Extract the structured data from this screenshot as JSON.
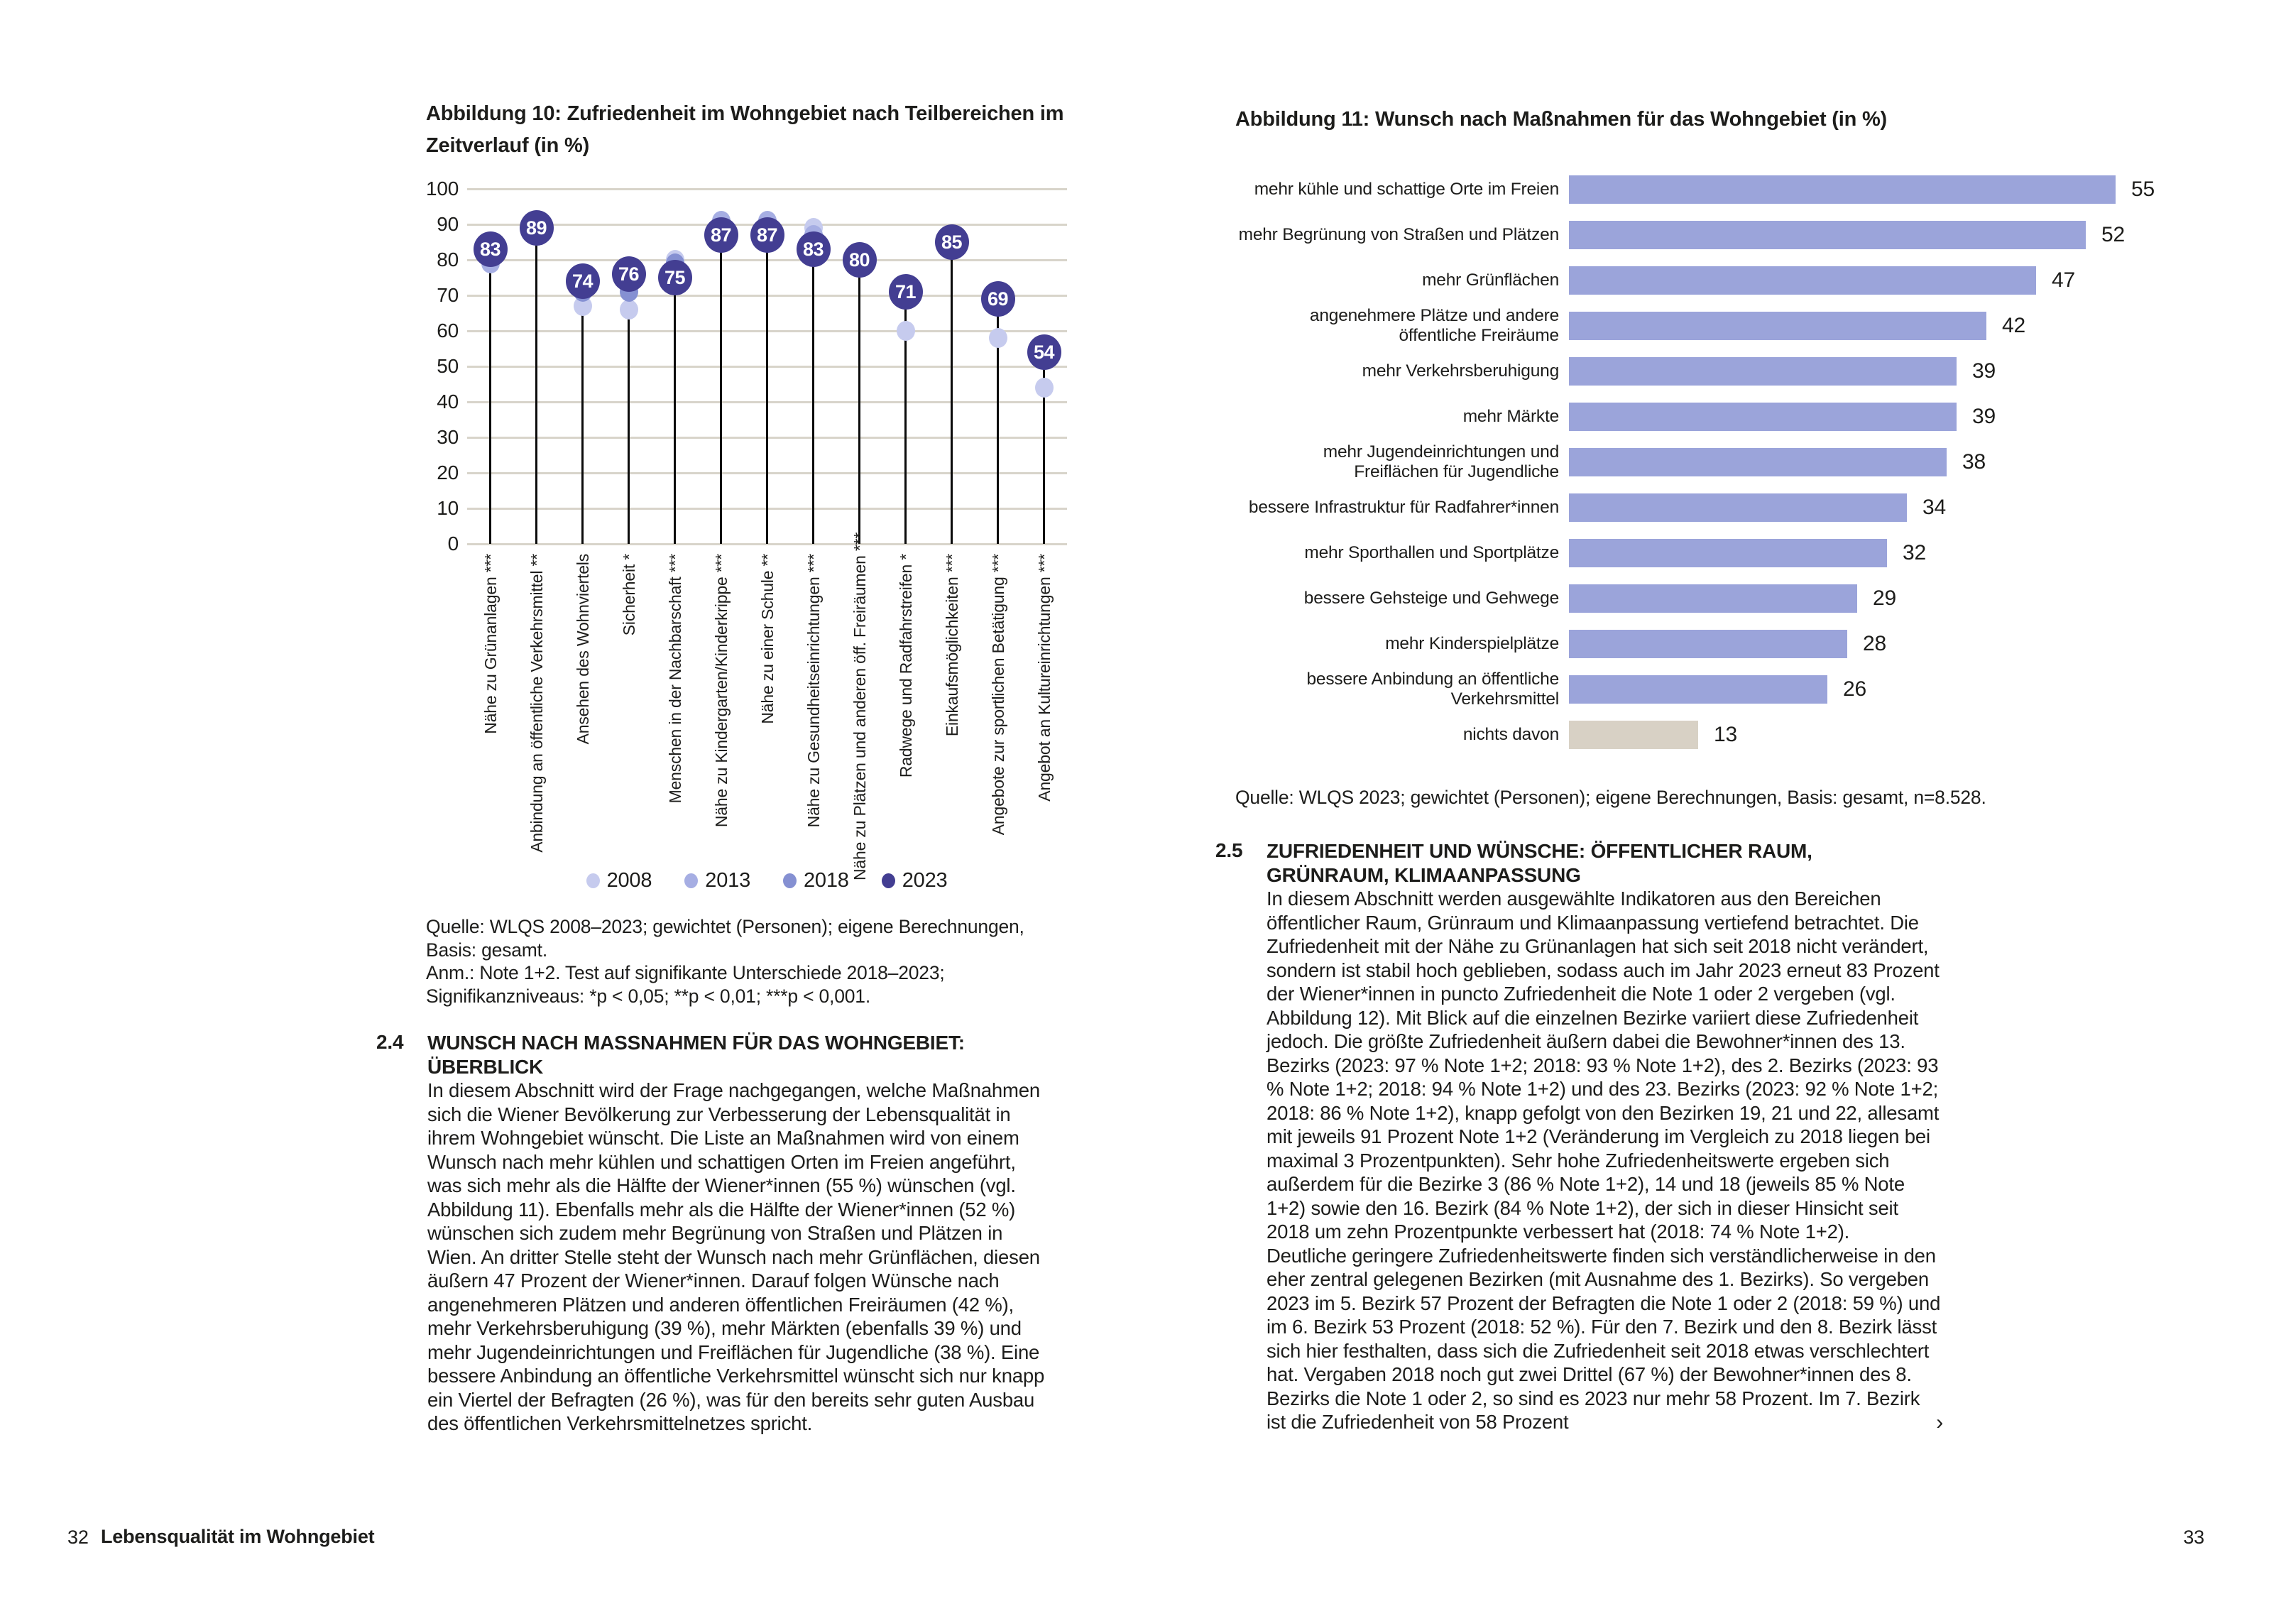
{
  "colors": {
    "accent_dark": "#433e92",
    "dot_2008": "#c6cbee",
    "dot_2013": "#a6aee3",
    "dot_2018": "#8590d2",
    "bar": "#9ba4da",
    "bar_muted": "#d8d1c5",
    "grid": "#d8d4ca",
    "text": "#1d1d1b"
  },
  "figure10": {
    "title_lines": [
      "Abbildung 10: Zufriedenheit im Wohngebiet nach Teilbereichen im",
      "Zeitverlauf (in %)"
    ],
    "source_line1": "Quelle: WLQS 2008–2023; gewichtet (Personen); eigene Berechnungen, Basis: gesamt.",
    "source_line2": "Anm.: Note 1+2. Test auf signifikante Unterschiede 2018–2023; Signifikanzniveaus: *p < 0,05; **p < 0,01; ***p < 0,001."
  },
  "figure11": {
    "title": "Abbildung 11: Wunsch nach Maßnahmen für das Wohngebiet (in %)",
    "source": "Quelle: WLQS 2023; gewichtet (Personen); eigene Berechnungen, Basis: gesamt, n=8.528."
  },
  "sections": {
    "s24": {
      "number": "2.4",
      "heading": "WUNSCH NACH MASSNAHMEN FÜR DAS WOHNGEBIET: ÜBERBLICK",
      "body": "In diesem Abschnitt wird der Frage nachgegangen, welche Maßnahmen sich die Wiener Bevölkerung zur Verbesserung der Lebensqualität in ihrem Wohngebiet wünscht. Die Liste an Maßnahmen wird von einem Wunsch nach mehr kühlen und schattigen Orten im Freien angeführt, was sich mehr als die Hälfte der Wiener*innen (55 %) wünschen (vgl. Abbildung 11). Ebenfalls mehr als die Hälfte der Wiener*innen (52 %) wünschen sich zudem mehr Begrünung von Straßen und Plätzen in Wien. An dritter Stelle steht der Wunsch nach mehr Grünflächen, diesen äußern 47 Prozent der Wiener*innen. Darauf folgen Wünsche nach angenehmeren Plätzen und anderen öffentlichen Freiräumen (42 %), mehr Verkehrsberuhigung (39 %), mehr Märkten (ebenfalls 39 %) und mehr Jugendeinrichtungen und Freiflächen für Jugendliche (38 %). Eine bessere Anbindung an öffentliche Verkehrsmittel wünscht sich nur knapp ein Viertel der Befragten (26 %), was für den bereits sehr guten Ausbau des öffentlichen Verkehrsmittelnetzes spricht."
    },
    "s25": {
      "number": "2.5",
      "heading_lines": [
        "ZUFRIEDENHEIT UND WÜNSCHE: ÖFFENTLICHER RAUM,",
        "GRÜNRAUM, KLIMAANPASSUNG"
      ],
      "body1": "In diesem Abschnitt werden ausgewählte Indikatoren aus den Bereichen öffentlicher Raum, Grünraum und Klimaanpassung vertiefend betrachtet. Die Zufriedenheit mit der Nähe zu Grünanlagen hat sich seit 2018 nicht verändert, sondern ist stabil hoch geblieben, sodass auch im Jahr 2023 erneut 83 Prozent der Wiener*innen in puncto Zufriedenheit die Note 1 oder 2 vergeben (vgl. Abbildung 12). Mit Blick auf die einzelnen Bezirke variiert diese Zufriedenheit jedoch. Die größte Zufriedenheit äußern dabei die Bewohner*innen des 13. Bezirks (2023: 97 % Note 1+2; 2018: 93 % Note 1+2), des 2. Bezirks (2023: 93 % Note 1+2; 2018: 94 % Note 1+2) und des 23. Bezirks (2023: 92 % Note 1+2; 2018: 86 % Note 1+2), knapp gefolgt von den Bezirken 19, 21 und 22, allesamt mit jeweils 91 Prozent Note 1+2 (Veränderung im Vergleich zu 2018 liegen bei maximal 3 Prozentpunkten). Sehr hohe Zufriedenheitswerte ergeben sich außerdem für die Bezirke 3 (86 % Note 1+2), 14 und 18 (jeweils 85 % Note 1+2) sowie den 16. Bezirk (84 % Note 1+2), der sich in dieser Hinsicht seit 2018 um zehn Prozentpunkte verbessert hat (2018: 74 % Note 1+2).",
      "body2": "Deutliche geringere Zufriedenheitswerte finden sich verständlicherweise in den eher zentral gelegenen Bezirken (mit Ausnahme des 1. Bezirks). So vergeben 2023 im 5. Bezirk 57 Prozent der Befragten die Note 1 oder 2 (2018: 59 %) und im 6. Bezirk 53 Prozent (2018: 52 %). Für den 7. Bezirk und den 8. Bezirk lässt sich hier festhalten, dass sich die Zufriedenheit seit 2018 etwas verschlechtert hat. Vergaben 2018 noch gut zwei Drittel (67 %) der Bewohner*innen des 8. Bezirks die Note 1 oder 2, so sind es 2023 nur mehr 58 Prozent. Im 7. Bezirk ist die Zufriedenheit von 58 Prozent",
      "continuation_mark": "›"
    }
  },
  "footer": {
    "left_page_number": "32",
    "left_title": "Lebensqualität im Wohngebiet",
    "right_page_number": "33"
  },
  "chart_data": [
    {
      "type": "scatter",
      "variant": "lollipop-dot-timeline",
      "title": "Abbildung 10: Zufriedenheit im Wohngebiet nach Teilbereichen im Zeitverlauf (in %)",
      "ylim": [
        0,
        100
      ],
      "yticks": [
        0,
        10,
        20,
        30,
        40,
        50,
        60,
        70,
        80,
        90,
        100
      ],
      "grid": true,
      "legend_position": "bottom",
      "legend": [
        {
          "year": "2008",
          "color": "#c6cbee"
        },
        {
          "year": "2013",
          "color": "#a6aee3"
        },
        {
          "year": "2018",
          "color": "#8590d2"
        },
        {
          "year": "2023",
          "color": "#433e92"
        }
      ],
      "categories": [
        {
          "label": "Nähe zu Grünanlagen ***",
          "points": [
            {
              "year": "2013",
              "value": 79
            },
            {
              "year": "2023",
              "value": 83
            }
          ]
        },
        {
          "label": "Anbindung an öffentliche Verkehrsmittel **",
          "points": [
            {
              "year": "2023",
              "value": 89
            }
          ]
        },
        {
          "label": "Ansehen des Wohnviertels",
          "points": [
            {
              "year": "2008",
              "value": 67
            },
            {
              "year": "2018",
              "value": 71
            },
            {
              "year": "2023",
              "value": 74
            }
          ]
        },
        {
          "label": "Sicherheit *",
          "points": [
            {
              "year": "2008",
              "value": 66
            },
            {
              "year": "2018",
              "value": 71
            },
            {
              "year": "2023",
              "value": 76
            }
          ]
        },
        {
          "label": "Menschen in der Nachbarschaft ***",
          "points": [
            {
              "year": "2008",
              "value": 80
            },
            {
              "year": "2018",
              "value": 79
            },
            {
              "year": "2023",
              "value": 75
            }
          ]
        },
        {
          "label": "Nähe zu Kindergarten/Kinderkrippe ***",
          "points": [
            {
              "year": "2013",
              "value": 91
            },
            {
              "year": "2023",
              "value": 87
            }
          ]
        },
        {
          "label": "Nähe zu einer Schule **",
          "points": [
            {
              "year": "2013",
              "value": 91
            },
            {
              "year": "2023",
              "value": 87
            }
          ]
        },
        {
          "label": "Nähe zu Gesundheitseinrichtungen ***",
          "points": [
            {
              "year": "2008",
              "value": 89
            },
            {
              "year": "2013",
              "value": 87
            },
            {
              "year": "2023",
              "value": 83
            }
          ]
        },
        {
          "label": "Nähe zu Plätzen und anderen öff. Freiräumen ***",
          "points": [
            {
              "year": "2018",
              "value": 78
            },
            {
              "year": "2023",
              "value": 80
            }
          ]
        },
        {
          "label": "Radwege und Radfahrstreifen *",
          "points": [
            {
              "year": "2008",
              "value": 60
            },
            {
              "year": "2023",
              "value": 71
            }
          ]
        },
        {
          "label": "Einkaufsmöglichkeiten ***",
          "points": [
            {
              "year": "2018",
              "value": 83
            },
            {
              "year": "2023",
              "value": 85
            }
          ]
        },
        {
          "label": "Angebote zur sportlichen Betätigung ***",
          "points": [
            {
              "year": "2008",
              "value": 58
            },
            {
              "year": "2018",
              "value": 67
            },
            {
              "year": "2023",
              "value": 69
            }
          ]
        },
        {
          "label": "Angebot an Kultureinrichtungen ***",
          "points": [
            {
              "year": "2008",
              "value": 44
            },
            {
              "year": "2023",
              "value": 54
            }
          ]
        }
      ]
    },
    {
      "type": "bar",
      "orientation": "horizontal",
      "title": "Abbildung 11: Wunsch nach Maßnahmen für das Wohngebiet (in %)",
      "xlim": [
        0,
        55
      ],
      "bar_color": "#9ba4da",
      "muted_bar_color": "#d8d1c5",
      "bars": [
        {
          "label": "mehr kühle und schattige Orte im Freien",
          "value": 55
        },
        {
          "label": "mehr Begrünung von Straßen und Plätzen",
          "value": 52
        },
        {
          "label": "mehr Grünflächen",
          "value": 47
        },
        {
          "label": "angenehmere Plätze und andere öffentliche Freiräume",
          "value": 42
        },
        {
          "label": "mehr Verkehrsberuhigung",
          "value": 39
        },
        {
          "label": "mehr Märkte",
          "value": 39
        },
        {
          "label": "mehr Jugendeinrichtungen und Freiflächen für Jugendliche",
          "value": 38
        },
        {
          "label": "bessere Infrastruktur für Radfahrer*innen",
          "value": 34
        },
        {
          "label": "mehr Sporthallen und Sportplätze",
          "value": 32
        },
        {
          "label": "bessere Gehsteige und Gehwege",
          "value": 29
        },
        {
          "label": "mehr Kinderspielplätze",
          "value": 28
        },
        {
          "label": "bessere Anbindung an öffentliche Verkehrsmittel",
          "value": 26
        },
        {
          "label": "nichts davon",
          "value": 13,
          "muted": true
        }
      ]
    }
  ]
}
